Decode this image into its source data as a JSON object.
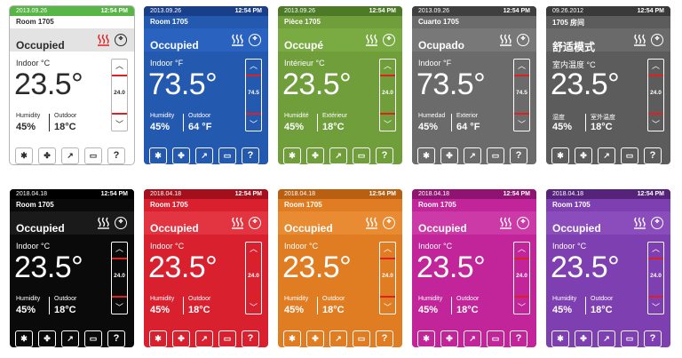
{
  "cards": [
    {
      "date": "2013.09.26",
      "time": "12:54 PM",
      "room": "Room 1705",
      "status": "Occupied",
      "indoor_label": "Indoor °C",
      "temp": "23.5°",
      "setpoint": "24.0",
      "humidity_label": "Humidity",
      "humidity": "45%",
      "outdoor_label": "Outdoor",
      "outdoor": "18°C",
      "colors": {
        "bar": "#58b647",
        "bg": "#ffffff",
        "header": "#e3e3e3",
        "text": "#2b2b2b",
        "heat": "#e02020",
        "border": "#b5b5b5"
      }
    },
    {
      "date": "2013.09.26",
      "time": "12:54 PM",
      "room": "Room 1705",
      "status": "Occupied",
      "indoor_label": "Indoor °F",
      "temp": "73.5°",
      "setpoint": "74.5",
      "humidity_label": "Humidity",
      "humidity": "45%",
      "outdoor_label": "Outdoor",
      "outdoor": "64 °F",
      "colors": {
        "bar": "#1a3f8a",
        "bg": "#2459b0",
        "header": "#2a62c0",
        "text": "#ffffff",
        "heat": "#ffffff",
        "border": "#ffffff"
      }
    },
    {
      "date": "2013.09.26",
      "time": "12:54 PM",
      "room": "Pièce 1705",
      "status": "Occupé",
      "indoor_label": "Intérieur °C",
      "temp": "23.5°",
      "setpoint": "24.0",
      "humidity_label": "Humidité",
      "humidity": "45%",
      "outdoor_label": "Extérieur",
      "outdoor": "18°C",
      "colors": {
        "bar": "#4c7a27",
        "bg": "#6f9e3a",
        "header": "#7aab42",
        "text": "#ffffff",
        "heat": "#ffffff",
        "border": "#ffffff"
      }
    },
    {
      "date": "2013.09.26",
      "time": "12:54 PM",
      "room": "Cuarto 1705",
      "status": "Ocupado",
      "indoor_label": "Indoor °F",
      "temp": "73.5°",
      "setpoint": "74.5",
      "humidity_label": "Humedad",
      "humidity": "45%",
      "outdoor_label": "Exterior",
      "outdoor": "64 °F",
      "colors": {
        "bar": "#3f3f3f",
        "bg": "#6b6b6b",
        "header": "#787878",
        "text": "#ffffff",
        "heat": "#ffffff",
        "border": "#ffffff"
      }
    },
    {
      "date": "09.26.2012",
      "time": "12:54 PM",
      "room": "1705 房间",
      "status": "舒适模式",
      "indoor_label": "室内温度 °C",
      "temp": "23.5°",
      "setpoint": "24.0",
      "humidity_label": "湿度",
      "humidity": "45%",
      "outdoor_label": "室外温度",
      "outdoor": "18°C",
      "colors": {
        "bar": "#3a3a3a",
        "bg": "#5c5c5c",
        "header": "#6a6a6a",
        "text": "#ffffff",
        "heat": "#ffffff",
        "border": "#ffffff"
      }
    },
    {
      "date": "2018.04.18",
      "time": "12:54 PM",
      "room": "Room 1705",
      "status": "Occupied",
      "indoor_label": "Indoor °C",
      "temp": "23.5°",
      "setpoint": "24.0",
      "humidity_label": "Humidity",
      "humidity": "45%",
      "outdoor_label": "Outdoor",
      "outdoor": "18°C",
      "colors": {
        "bar": "#000000",
        "bg": "#0a0a0a",
        "header": "#1a1a1a",
        "text": "#ffffff",
        "heat": "#ffffff",
        "border": "#ffffff"
      }
    },
    {
      "date": "2018.04.18",
      "time": "12:54 PM",
      "room": "Room 1705",
      "status": "Occupied",
      "indoor_label": "Indoor °C",
      "temp": "23.5°",
      "setpoint": "24.0",
      "humidity_label": "Humidity",
      "humidity": "45%",
      "outdoor_label": "Outdoor",
      "outdoor": "18°C",
      "colors": {
        "bar": "#a40f1c",
        "bg": "#d8202e",
        "header": "#e33441",
        "text": "#ffffff",
        "heat": "#ffffff",
        "border": "#ffffff"
      }
    },
    {
      "date": "2018.04.18",
      "time": "12:54 PM",
      "room": "Room 1705",
      "status": "Occupied",
      "indoor_label": "Indoor °C",
      "temp": "23.5°",
      "setpoint": "24.0",
      "humidity_label": "Humidity",
      "humidity": "45%",
      "outdoor_label": "Outdoor",
      "outdoor": "18°C",
      "colors": {
        "bar": "#b85f12",
        "bg": "#e07d23",
        "header": "#e88b33",
        "text": "#ffffff",
        "heat": "#ffffff",
        "border": "#ffffff"
      }
    },
    {
      "date": "2018.04.18",
      "time": "12:54 PM",
      "room": "Room 1705",
      "status": "Occupied",
      "indoor_label": "Indoor °C",
      "temp": "23.5°",
      "setpoint": "24.0",
      "humidity_label": "Humidity",
      "humidity": "45%",
      "outdoor_label": "Outdoor",
      "outdoor": "18°C",
      "colors": {
        "bar": "#8f1370",
        "bg": "#c2249a",
        "header": "#cb3aa6",
        "text": "#ffffff",
        "heat": "#ffffff",
        "border": "#ffffff"
      }
    },
    {
      "date": "2018.04.18",
      "time": "12:54 PM",
      "room": "Room 1705",
      "status": "Occupied",
      "indoor_label": "Indoor °C",
      "temp": "23.5°",
      "setpoint": "24.0",
      "humidity_label": "Humidity",
      "humidity": "45%",
      "outdoor_label": "Outdoor",
      "outdoor": "18°C",
      "colors": {
        "bar": "#55247a",
        "bg": "#7e3fb0",
        "header": "#8a4dbb",
        "text": "#ffffff",
        "heat": "#ffffff",
        "border": "#ffffff"
      }
    }
  ],
  "buttons": [
    {
      "name": "mode-button",
      "icon": "snowflake-icon",
      "glyph": "✱"
    },
    {
      "name": "fan-button",
      "icon": "fan-icon",
      "glyph": "✤"
    },
    {
      "name": "temperature-button",
      "icon": "temperature-icon",
      "glyph": "↗"
    },
    {
      "name": "message-button",
      "icon": "chat-bubble-icon",
      "glyph": "▭"
    },
    {
      "name": "help-button",
      "icon": "question-icon",
      "glyph": "?"
    }
  ]
}
